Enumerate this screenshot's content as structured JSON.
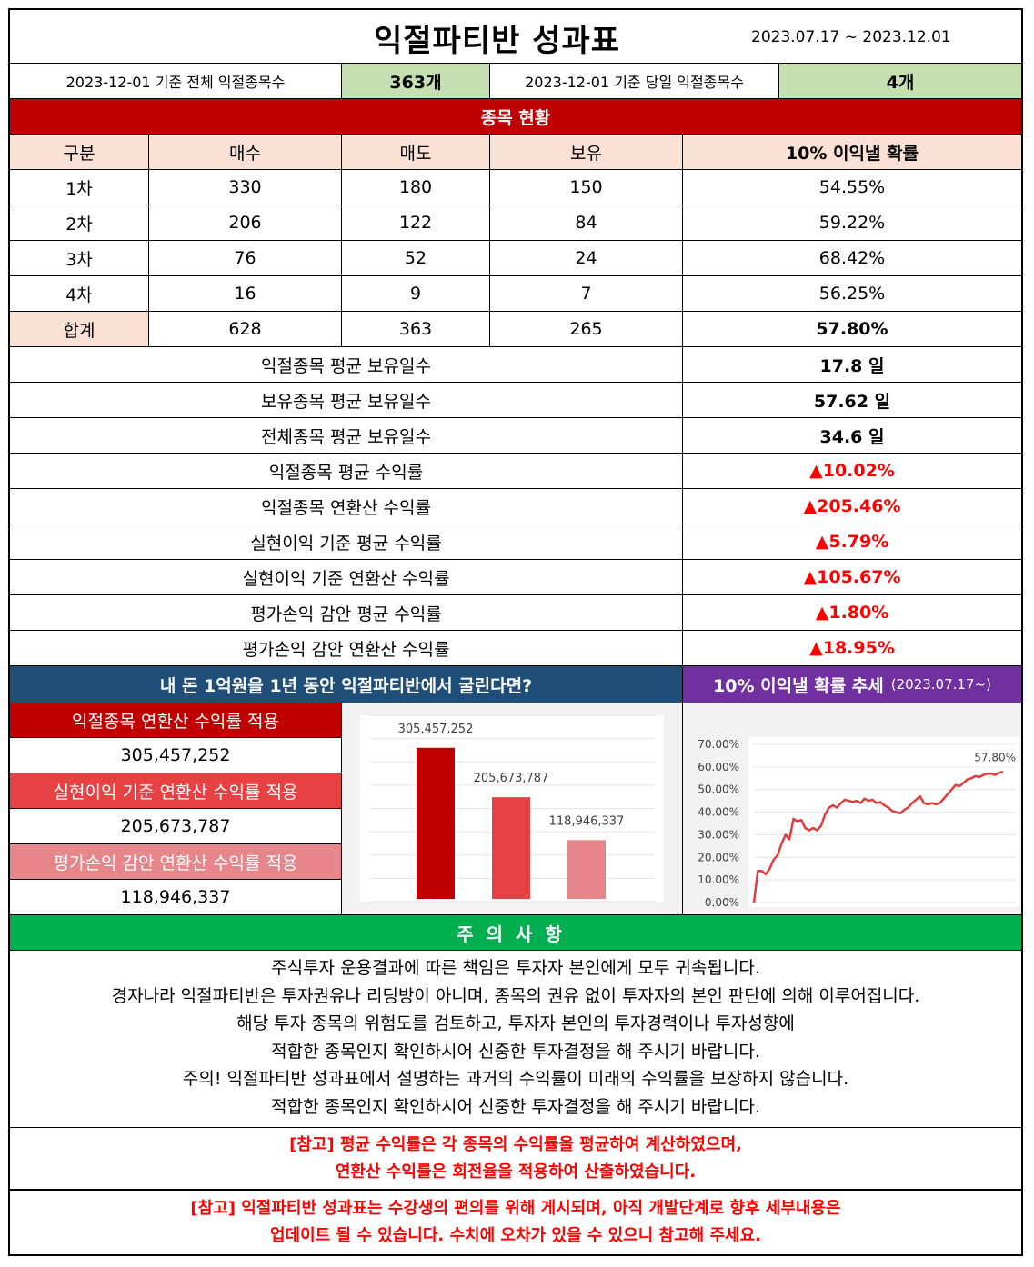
{
  "header": {
    "title": "익절파티반 성과표",
    "date_range": "2023.07.17 ~ 2023.12.01"
  },
  "summary": {
    "total_label": "2023-12-01 기준 전체 익절종목수",
    "total_value": "363개",
    "today_label": "2023-12-01 기준 당일 익절종목수",
    "today_value": "4개"
  },
  "section_title": "종목 현황",
  "table": {
    "headers": [
      "구분",
      "매수",
      "매도",
      "보유",
      "10% 이익낼 확률"
    ],
    "rows": [
      [
        "1차",
        "330",
        "180",
        "150",
        "54.55%"
      ],
      [
        "2차",
        "206",
        "122",
        "84",
        "59.22%"
      ],
      [
        "3차",
        "76",
        "52",
        "24",
        "68.42%"
      ],
      [
        "4차",
        "16",
        "9",
        "7",
        "56.25%"
      ]
    ],
    "total": [
      "합계",
      "628",
      "363",
      "265",
      "57.80%"
    ]
  },
  "stats": [
    {
      "label": "익절종목 평균 보유일수",
      "value": "17.8 일"
    },
    {
      "label": "보유종목 평균 보유일수",
      "value": "57.62 일"
    },
    {
      "label": "전체종목 평균 보유일수",
      "value": "34.6 일"
    },
    {
      "label": "익절종목 평균 수익률",
      "value": "▲10.02%"
    },
    {
      "label": "익절종목 연환산 수익률",
      "value": "▲205.46%"
    },
    {
      "label": "실현이익 기준 평균 수익률",
      "value": "▲5.79%"
    },
    {
      "label": "실현이익 기준 연환산 수익률",
      "value": "▲105.67%"
    },
    {
      "label": "평가손익 감안 평균 수익률",
      "value": "▲1.80%"
    },
    {
      "label": "평가손익 감안 연환산 수익률",
      "value": "▲18.95%"
    }
  ],
  "invest": {
    "banner": "내 돈 1억원을 1년 동안 익절파티반에서 굴린다면?",
    "items": [
      {
        "label": "익절종목 연환산 수익률 적용",
        "value": "305,457,252"
      },
      {
        "label": "실현이익 기준 연환산 수익률 적용",
        "value": "205,673,787"
      },
      {
        "label": "평가손익 감안 연환산 수익률 적용",
        "value": "118,946,337"
      }
    ]
  },
  "trend": {
    "banner": "10% 이익낼 확률 추세",
    "banner_sub": "(2023.07.17~)"
  },
  "colors": {
    "bar1": "#c00000",
    "bar2": "#e84143",
    "bar3": "#e6868a",
    "line": "#e03c3c"
  },
  "chart_data": [
    {
      "type": "bar",
      "categories": [
        "익절종목 연환산 수익률 적용",
        "실현이익 기준 연환산 수익률 적용",
        "평가손익 감안 연환산 수익률 적용"
      ],
      "values": [
        305457252,
        205673787,
        118946337
      ],
      "data_labels": [
        "305,457,252",
        "205,673,787",
        "118,946,337"
      ],
      "ylim": [
        0,
        340000000
      ],
      "grid": true
    },
    {
      "type": "line",
      "y_ticks": [
        "0.00%",
        "10.00%",
        "20.00%",
        "30.00%",
        "40.00%",
        "50.00%",
        "60.00%",
        "70.00%"
      ],
      "ylim": [
        0,
        70
      ],
      "end_label": "57.80%",
      "grid": true,
      "values": [
        0,
        14,
        14,
        12.5,
        15,
        19,
        21,
        26,
        30,
        28,
        37,
        36,
        36.5,
        33,
        32,
        33,
        32,
        34,
        39,
        42,
        43,
        42,
        44,
        45.5,
        45,
        44.5,
        45,
        44,
        46,
        45,
        45.5,
        44,
        44.5,
        43,
        42,
        40.5,
        40,
        39.5,
        41,
        42,
        44,
        45.5,
        47,
        44,
        43.5,
        44,
        43.5,
        44,
        46,
        48,
        50,
        52,
        51.5,
        53,
        54.5,
        55,
        56,
        55.5,
        56.5,
        57,
        57,
        56.5,
        57.5,
        57.8
      ]
    }
  ],
  "notice": {
    "title": "주의사항",
    "lines": [
      "주식투자 운용결과에 따른 책임은 투자자 본인에게 모두 귀속됩니다.",
      "경자나라 익절파티반은 투자권유나 리딩방이 아니며, 종목의 권유 없이 투자자의 본인 판단에 의해 이루어집니다.",
      "해당 투자 종목의 위험도를 검토하고, 투자자 본인의 투자경력이나 투자성향에",
      "적합한 종목인지 확인하시어 신중한 투자결정을 해 주시기 바랍니다.",
      "주의! 익절파티반 성과표에서 설명하는 과거의 수익률이 미래의 수익률을 보장하지 않습니다.",
      "적합한 종목인지 확인하시어 신중한 투자결정을 해 주시기 바랍니다."
    ]
  },
  "refs": {
    "ref1_line1": "[참고] 평균 수익률은 각 종목의 수익률을 평균하여 계산하였으며,",
    "ref1_line2": "연환산 수익률은 회전율을 적용하여 산출하였습니다.",
    "ref2_line1": "[참고] 익절파티반 성과표는 수강생의 편의를 위해 게시되며, 아직 개발단계로 향후 세부내용은",
    "ref2_line2": "업데이트 될 수 있습니다. 수치에 오차가 있을 수 있으니 참고해 주세요."
  }
}
